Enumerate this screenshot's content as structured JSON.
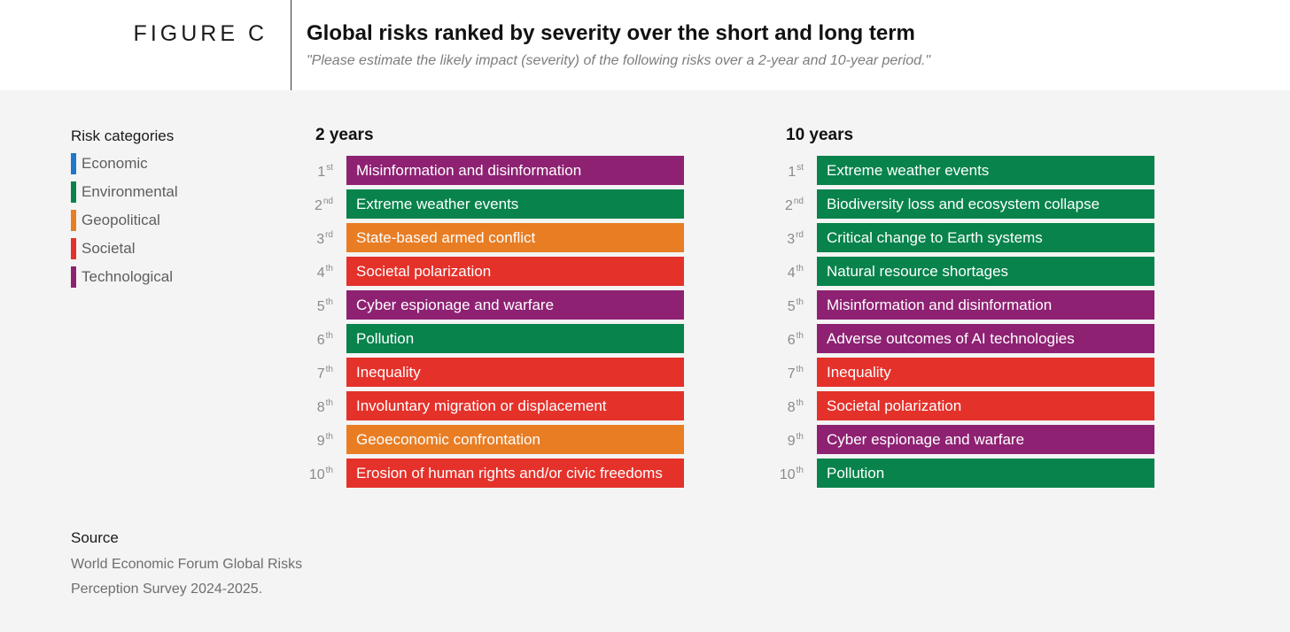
{
  "header": {
    "figure_label": "FIGURE C",
    "title": "Global risks ranked by severity over the short and long term",
    "subtitle": "\"Please estimate the likely impact (severity) of the following risks over a 2-year and 10-year period.\""
  },
  "legend": {
    "title": "Risk categories",
    "items": [
      {
        "key": "economic",
        "label": "Economic",
        "color": "#1f77c9"
      },
      {
        "key": "environmental",
        "label": "Environmental",
        "color": "#07834b"
      },
      {
        "key": "geopolitical",
        "label": "Geopolitical",
        "color": "#e87d24"
      },
      {
        "key": "societal",
        "label": "Societal",
        "color": "#e4312a"
      },
      {
        "key": "technological",
        "label": "Technological",
        "color": "#8e2172"
      }
    ]
  },
  "chart_data": [
    {
      "type": "table",
      "title": "2 years",
      "ranks": [
        {
          "num": "1",
          "suffix": "st"
        },
        {
          "num": "2",
          "suffix": "nd"
        },
        {
          "num": "3",
          "suffix": "rd"
        },
        {
          "num": "4",
          "suffix": "th"
        },
        {
          "num": "5",
          "suffix": "th"
        },
        {
          "num": "6",
          "suffix": "th"
        },
        {
          "num": "7",
          "suffix": "th"
        },
        {
          "num": "8",
          "suffix": "th"
        },
        {
          "num": "9",
          "suffix": "th"
        },
        {
          "num": "10",
          "suffix": "th"
        }
      ],
      "risks": [
        {
          "label": "Misinformation and disinformation",
          "category": "technological"
        },
        {
          "label": "Extreme weather events",
          "category": "environmental"
        },
        {
          "label": "State-based armed conflict",
          "category": "geopolitical"
        },
        {
          "label": "Societal polarization",
          "category": "societal"
        },
        {
          "label": "Cyber espionage and warfare",
          "category": "technological"
        },
        {
          "label": "Pollution",
          "category": "environmental"
        },
        {
          "label": "Inequality",
          "category": "societal"
        },
        {
          "label": "Involuntary migration or displacement",
          "category": "societal"
        },
        {
          "label": "Geoeconomic confrontation",
          "category": "geopolitical"
        },
        {
          "label": "Erosion of human rights and/or civic freedoms",
          "category": "societal"
        }
      ]
    },
    {
      "type": "table",
      "title": "10 years",
      "ranks": [
        {
          "num": "1",
          "suffix": "st"
        },
        {
          "num": "2",
          "suffix": "nd"
        },
        {
          "num": "3",
          "suffix": "rd"
        },
        {
          "num": "4",
          "suffix": "th"
        },
        {
          "num": "5",
          "suffix": "th"
        },
        {
          "num": "6",
          "suffix": "th"
        },
        {
          "num": "7",
          "suffix": "th"
        },
        {
          "num": "8",
          "suffix": "th"
        },
        {
          "num": "9",
          "suffix": "th"
        },
        {
          "num": "10",
          "suffix": "th"
        }
      ],
      "risks": [
        {
          "label": "Extreme weather events",
          "category": "environmental"
        },
        {
          "label": "Biodiversity loss and ecosystem collapse",
          "category": "environmental"
        },
        {
          "label": "Critical change to Earth systems",
          "category": "environmental"
        },
        {
          "label": "Natural resource shortages",
          "category": "environmental"
        },
        {
          "label": "Misinformation and disinformation",
          "category": "technological"
        },
        {
          "label": "Adverse outcomes of AI technologies",
          "category": "technological"
        },
        {
          "label": "Inequality",
          "category": "societal"
        },
        {
          "label": "Societal polarization",
          "category": "societal"
        },
        {
          "label": "Cyber espionage and warfare",
          "category": "technological"
        },
        {
          "label": "Pollution",
          "category": "environmental"
        }
      ]
    }
  ],
  "source": {
    "title": "Source",
    "lines": [
      "World Economic Forum Global Risks",
      "Perception Survey 2024-2025."
    ]
  }
}
